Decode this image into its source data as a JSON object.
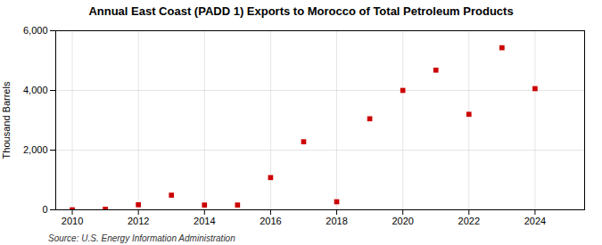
{
  "chart_data": {
    "type": "scatter",
    "title": "Annual East Coast (PADD 1) Exports to Morocco of Total Petroleum Products",
    "ylabel": "Thousand Barrels",
    "source": "Source: U.S. Energy Information Administration",
    "x": [
      2010,
      2011,
      2012,
      2013,
      2014,
      2015,
      2016,
      2017,
      2018,
      2019,
      2020,
      2021,
      2022,
      2023,
      2024
    ],
    "values": [
      0,
      20,
      170,
      490,
      160,
      160,
      1080,
      2280,
      270,
      3050,
      4000,
      4680,
      3200,
      5430,
      4060
    ],
    "color": "#cc0000",
    "marker": "square",
    "xlim": [
      2009.5,
      2025.5
    ],
    "xticks": [
      2010,
      2012,
      2014,
      2016,
      2018,
      2020,
      2022,
      2024
    ],
    "ylim": [
      0,
      6000
    ],
    "yticks": [
      0,
      {
        "value": 2000,
        "label": "2,000"
      },
      {
        "value": 4000,
        "label": "4,000"
      },
      {
        "value": 6000,
        "label": "6,000"
      }
    ],
    "grid": true
  }
}
